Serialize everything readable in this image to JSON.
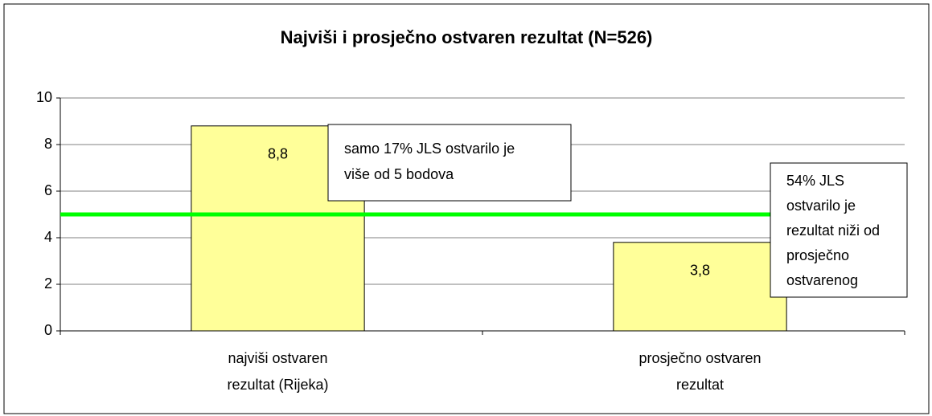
{
  "chart_data": {
    "type": "bar",
    "title": "Najviši i prosječno ostvaren rezultat (N=526)",
    "categories": [
      "najviši ostvaren\nrezultat (Rijeka)",
      "prosječno ostvaren\nrezultat"
    ],
    "values": [
      8.8,
      3.8
    ],
    "value_labels": [
      "8,8",
      "3,8"
    ],
    "color": "#ffff99",
    "ylim": [
      0,
      10
    ],
    "yticks": [
      0,
      2,
      4,
      6,
      8,
      10
    ],
    "grid": true,
    "reference_line": {
      "value": 5,
      "color": "#00ff00"
    },
    "annotations": [
      "samo 17% JLS ostvarilo je\nviše od 5 bodova",
      "54% JLS\nostvarilo je\nrezultat niži od\nprosječno\nostvarenog"
    ]
  }
}
